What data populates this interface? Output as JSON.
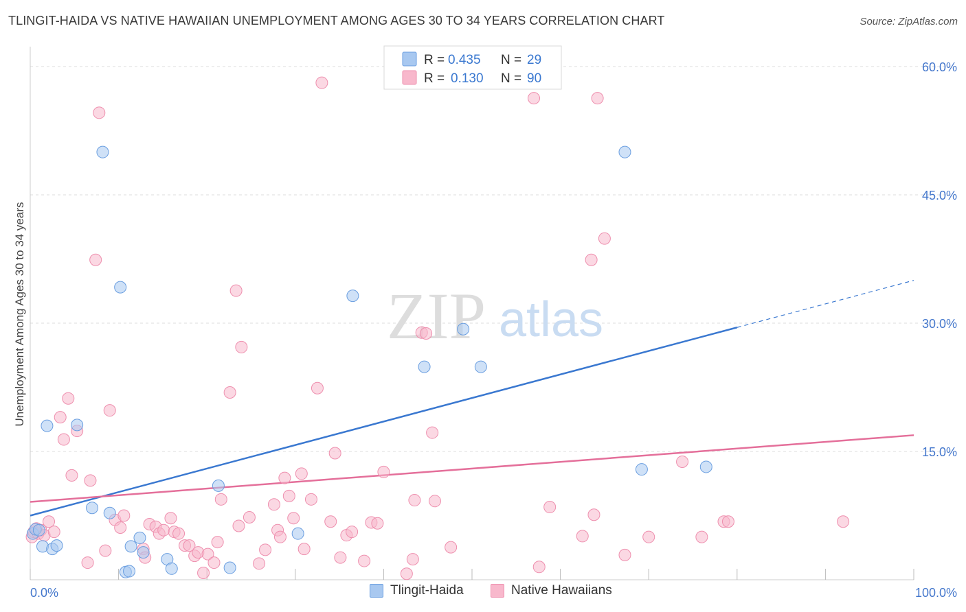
{
  "title": "TLINGIT-HAIDA VS NATIVE HAWAIIAN UNEMPLOYMENT AMONG AGES 30 TO 34 YEARS CORRELATION CHART",
  "source": "Source: ZipAtlas.com",
  "watermark": {
    "zip": "ZIP",
    "atlas": "atlas"
  },
  "colors": {
    "blue_fill": "#a8c8f0",
    "blue_stroke": "#6a9ee0",
    "blue_line": "#3a78d0",
    "pink_fill": "#f8b8cc",
    "pink_stroke": "#ee8fae",
    "pink_line": "#e46f9a",
    "axis_text": "#4477cc",
    "grid": "#dddddd"
  },
  "chart_data": {
    "type": "scatter",
    "title": "TLINGIT-HAIDA VS NATIVE HAWAIIAN UNEMPLOYMENT AMONG AGES 30 TO 34 YEARS CORRELATION CHART",
    "xlabel": "",
    "ylabel": "Unemployment Among Ages 30 to 34 years",
    "xlim": [
      0,
      100
    ],
    "ylim": [
      0,
      60
    ],
    "x_tick_labels": [
      "0.0%",
      "100.0%"
    ],
    "y_ticks": [
      15,
      30,
      45,
      60
    ],
    "y_tick_labels": [
      "15.0%",
      "30.0%",
      "45.0%",
      "60.0%"
    ],
    "grid": true,
    "legend_stats": [
      {
        "r_label": "R =",
        "r_value": "0.435",
        "n_label": "N =",
        "n_value": "29"
      },
      {
        "r_label": "R =",
        "r_value": "0.130",
        "n_label": "N =",
        "n_value": "90"
      }
    ],
    "series": [
      {
        "name": "Tlingit-Haida",
        "r": 0.435,
        "n": 29,
        "trend": {
          "x0": 0,
          "y0": 7.5,
          "x1": 80,
          "y1": 29.5,
          "dash_to_x": 100,
          "dash_to_y": 35
        },
        "points": [
          [
            0.3,
            5.4
          ],
          [
            0.6,
            5.9
          ],
          [
            1.0,
            5.8
          ],
          [
            1.4,
            3.9
          ],
          [
            1.9,
            18.0
          ],
          [
            2.5,
            3.6
          ],
          [
            3.0,
            4.0
          ],
          [
            5.3,
            18.1
          ],
          [
            7.0,
            8.4
          ],
          [
            8.2,
            50.0
          ],
          [
            9.0,
            7.8
          ],
          [
            10.2,
            34.2
          ],
          [
            10.8,
            0.9
          ],
          [
            11.2,
            1.0
          ],
          [
            11.4,
            3.9
          ],
          [
            12.4,
            4.9
          ],
          [
            12.8,
            3.2
          ],
          [
            15.5,
            2.4
          ],
          [
            16.0,
            1.3
          ],
          [
            21.3,
            11.0
          ],
          [
            22.6,
            1.4
          ],
          [
            30.3,
            5.4
          ],
          [
            36.5,
            33.2
          ],
          [
            44.6,
            24.9
          ],
          [
            49.0,
            29.3
          ],
          [
            51.0,
            24.9
          ],
          [
            67.3,
            50.0
          ],
          [
            69.2,
            12.9
          ],
          [
            76.5,
            13.2
          ]
        ]
      },
      {
        "name": "Native Hawaiians",
        "r": 0.13,
        "n": 90,
        "trend": {
          "x0": 0,
          "y0": 9.1,
          "x1": 100,
          "y1": 16.9
        },
        "points": [
          [
            0.2,
            5.0
          ],
          [
            0.4,
            5.6
          ],
          [
            0.7,
            6.0
          ],
          [
            0.9,
            5.4
          ],
          [
            1.2,
            5.8
          ],
          [
            1.6,
            5.2
          ],
          [
            2.1,
            6.8
          ],
          [
            2.7,
            5.6
          ],
          [
            3.4,
            19.0
          ],
          [
            3.8,
            16.4
          ],
          [
            4.3,
            21.2
          ],
          [
            4.7,
            12.2
          ],
          [
            5.3,
            17.4
          ],
          [
            6.5,
            2.0
          ],
          [
            6.8,
            11.6
          ],
          [
            7.4,
            37.4
          ],
          [
            7.8,
            54.6
          ],
          [
            8.5,
            3.4
          ],
          [
            9.0,
            19.8
          ],
          [
            9.6,
            7.0
          ],
          [
            10.2,
            6.1
          ],
          [
            10.6,
            7.5
          ],
          [
            12.8,
            3.6
          ],
          [
            13.0,
            2.6
          ],
          [
            13.5,
            6.5
          ],
          [
            14.2,
            6.2
          ],
          [
            14.6,
            5.4
          ],
          [
            15.1,
            5.8
          ],
          [
            15.9,
            7.2
          ],
          [
            16.3,
            5.6
          ],
          [
            16.8,
            5.4
          ],
          [
            17.5,
            4.0
          ],
          [
            18.0,
            4.0
          ],
          [
            18.6,
            2.8
          ],
          [
            19.0,
            3.2
          ],
          [
            19.6,
            0.8
          ],
          [
            20.1,
            3.0
          ],
          [
            20.8,
            2.0
          ],
          [
            21.2,
            4.4
          ],
          [
            21.6,
            9.4
          ],
          [
            22.6,
            21.9
          ],
          [
            23.3,
            33.8
          ],
          [
            23.6,
            6.3
          ],
          [
            23.9,
            27.2
          ],
          [
            24.8,
            7.3
          ],
          [
            25.9,
            1.9
          ],
          [
            26.6,
            3.5
          ],
          [
            27.6,
            8.8
          ],
          [
            28.0,
            5.8
          ],
          [
            28.3,
            5.0
          ],
          [
            28.8,
            11.9
          ],
          [
            29.3,
            9.8
          ],
          [
            29.8,
            7.2
          ],
          [
            30.7,
            12.4
          ],
          [
            31.0,
            3.6
          ],
          [
            31.8,
            9.4
          ],
          [
            32.5,
            22.4
          ],
          [
            33.0,
            58.1
          ],
          [
            34.0,
            6.8
          ],
          [
            34.5,
            14.8
          ],
          [
            35.1,
            2.6
          ],
          [
            35.8,
            5.2
          ],
          [
            36.4,
            5.6
          ],
          [
            37.8,
            2.2
          ],
          [
            38.6,
            6.7
          ],
          [
            39.3,
            6.6
          ],
          [
            40.0,
            12.6
          ],
          [
            42.6,
            0.7
          ],
          [
            43.3,
            2.4
          ],
          [
            43.5,
            9.3
          ],
          [
            44.3,
            28.9
          ],
          [
            44.8,
            28.8
          ],
          [
            45.5,
            17.2
          ],
          [
            45.8,
            9.2
          ],
          [
            47.6,
            3.8
          ],
          [
            57.0,
            56.3
          ],
          [
            57.6,
            1.5
          ],
          [
            58.8,
            8.5
          ],
          [
            62.5,
            5.1
          ],
          [
            63.8,
            7.6
          ],
          [
            64.2,
            56.3
          ],
          [
            65.0,
            39.9
          ],
          [
            63.5,
            37.4
          ],
          [
            67.3,
            2.9
          ],
          [
            70.0,
            5.0
          ],
          [
            73.8,
            13.8
          ],
          [
            76.0,
            5.0
          ],
          [
            78.5,
            6.8
          ],
          [
            79.0,
            6.8
          ],
          [
            92.0,
            6.8
          ]
        ]
      }
    ]
  }
}
